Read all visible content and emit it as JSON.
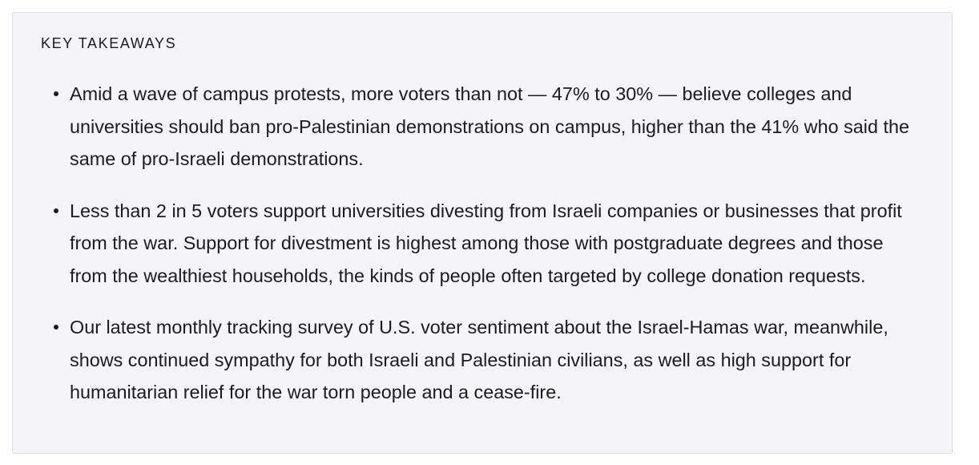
{
  "key_takeaways": {
    "heading": "KEY TAKEAWAYS",
    "items": [
      {
        "text": "Amid a wave of campus protests, more voters than not — 47% to 30% — believe colleges and universities should ban pro-Palestinian demonstrations on campus, higher than the 41% who said the same of pro-Israeli demonstrations."
      },
      {
        "text": "Less than 2 in 5 voters support universities divesting from Israeli companies or businesses that profit from the war. Support for divestment is highest among those with postgraduate degrees and those from the wealthiest households, the kinds of people often targeted by college donation requests."
      },
      {
        "text": "Our latest monthly tracking survey of U.S. voter sentiment about the Israel-Hamas war, meanwhile, shows continued sympathy for both Israeli and Palestinian civilians, as well as high support for humanitarian relief for the war torn people and a cease-fire."
      }
    ]
  }
}
